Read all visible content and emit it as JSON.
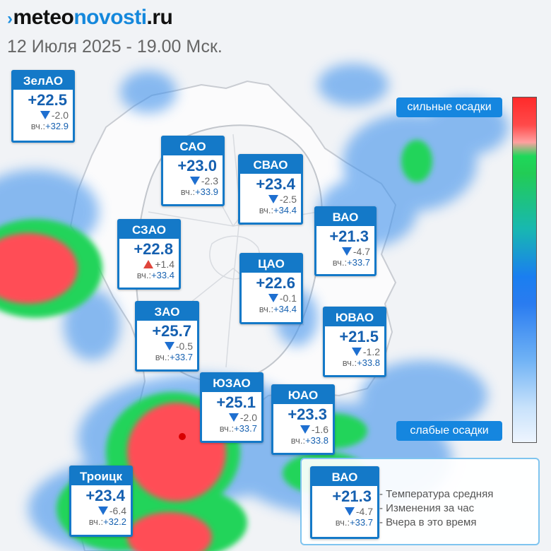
{
  "logo": {
    "mark": "›",
    "meteo": "meteo",
    "novosti": "novosti",
    "ru": ".ru"
  },
  "date": "12 Июля 2025 - 19.00 Мск.",
  "yest_label": "вч.:",
  "districts": [
    {
      "id": "zelao",
      "name": "ЗелАО",
      "temp": "+22.5",
      "change": "-2.0",
      "trend": "down",
      "yesterday": "+32.9"
    },
    {
      "id": "sao",
      "name": "САО",
      "temp": "+23.0",
      "change": "-2.3",
      "trend": "down",
      "yesterday": "+33.9"
    },
    {
      "id": "svao",
      "name": "СВАО",
      "temp": "+23.4",
      "change": "-2.5",
      "trend": "down",
      "yesterday": "+34.4"
    },
    {
      "id": "vao",
      "name": "ВАО",
      "temp": "+21.3",
      "change": "-4.7",
      "trend": "down",
      "yesterday": "+33.7"
    },
    {
      "id": "szao",
      "name": "СЗАО",
      "temp": "+22.8",
      "change": "+1.4",
      "trend": "up",
      "yesterday": "+33.4"
    },
    {
      "id": "cao",
      "name": "ЦАО",
      "temp": "+22.6",
      "change": "-0.1",
      "trend": "down",
      "yesterday": "+34.4"
    },
    {
      "id": "zao",
      "name": "ЗАО",
      "temp": "+25.7",
      "change": "-0.5",
      "trend": "down",
      "yesterday": "+33.7"
    },
    {
      "id": "yuvao",
      "name": "ЮВАО",
      "temp": "+21.5",
      "change": "-1.2",
      "trend": "down",
      "yesterday": "+33.8"
    },
    {
      "id": "yuzao",
      "name": "ЮЗАО",
      "temp": "+25.1",
      "change": "-2.0",
      "trend": "down",
      "yesterday": "+33.7"
    },
    {
      "id": "yuao",
      "name": "ЮАО",
      "temp": "+23.3",
      "change": "-1.6",
      "trend": "down",
      "yesterday": "+33.8"
    },
    {
      "id": "troitsk",
      "name": "Троицк",
      "temp": "+23.4",
      "change": "-6.4",
      "trend": "down",
      "yesterday": "+32.2"
    }
  ],
  "scale": {
    "strong": "сильные осадки",
    "weak": "слабые осадки"
  },
  "legend": {
    "example": {
      "name": "ВАО",
      "temp": "+21.3",
      "change": "-4.7",
      "trend": "down",
      "yesterday": "+33.7"
    },
    "items": [
      "- Температура средняя",
      "- Изменения за час",
      "- Вчера в это время"
    ]
  }
}
